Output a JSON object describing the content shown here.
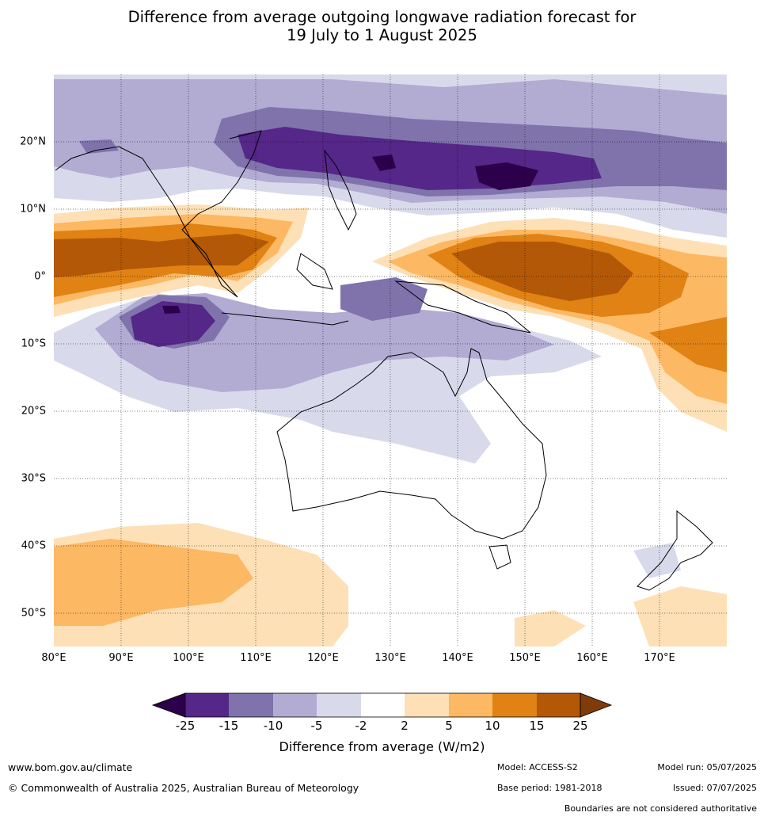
{
  "title": {
    "line1": "Difference from average outgoing longwave radiation forecast for",
    "line2": "19 July to 1 August 2025"
  },
  "map": {
    "lat_labels": [
      "20°N",
      "10°N",
      "0°",
      "10°S",
      "20°S",
      "30°S",
      "40°S",
      "50°S"
    ],
    "lon_labels": [
      "80°E",
      "90°E",
      "100°E",
      "110°E",
      "120°E",
      "130°E",
      "140°E",
      "150°E",
      "160°E",
      "170°E"
    ]
  },
  "colorbar": {
    "ticks": [
      "-25",
      "-15",
      "-10",
      "-5",
      "-2",
      "2",
      "5",
      "10",
      "15",
      "25"
    ],
    "colors": [
      "#2d004b",
      "#542788",
      "#8073ac",
      "#b2abd2",
      "#d8daeb",
      "#ffffff",
      "#fee0b6",
      "#fdb863",
      "#e08214",
      "#b35806",
      "#7f3b08"
    ],
    "label": "Difference from average (W/m2)"
  },
  "footer": {
    "url": "www.bom.gov.au/climate",
    "copyright": "© Commonwealth of Australia 2025, Australian Bureau of Meteorology",
    "model": "Model: ACCESS-S2",
    "base_period": "Base period: 1981-2018",
    "model_run": "Model run: 05/07/2025",
    "issued": "Issued: 07/07/2025",
    "disclaimer": "Boundaries are not considered authoritative"
  }
}
